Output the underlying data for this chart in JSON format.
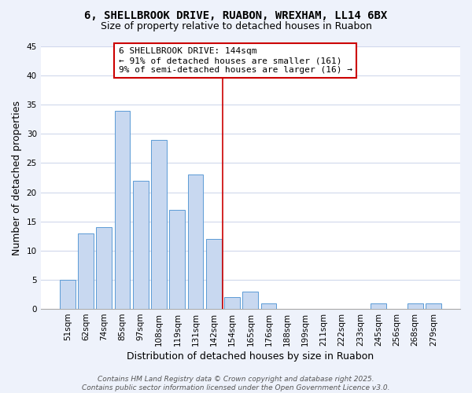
{
  "title_line1": "6, SHELLBROOK DRIVE, RUABON, WREXHAM, LL14 6BX",
  "title_line2": "Size of property relative to detached houses in Ruabon",
  "xlabel": "Distribution of detached houses by size in Ruabon",
  "ylabel": "Number of detached properties",
  "bar_labels": [
    "51sqm",
    "62sqm",
    "74sqm",
    "85sqm",
    "97sqm",
    "108sqm",
    "119sqm",
    "131sqm",
    "142sqm",
    "154sqm",
    "165sqm",
    "176sqm",
    "188sqm",
    "199sqm",
    "211sqm",
    "222sqm",
    "233sqm",
    "245sqm",
    "256sqm",
    "268sqm",
    "279sqm"
  ],
  "bar_values": [
    5,
    13,
    14,
    34,
    22,
    29,
    17,
    23,
    12,
    2,
    3,
    1,
    0,
    0,
    0,
    0,
    0,
    1,
    0,
    1,
    1
  ],
  "bar_color": "#c8d8f0",
  "bar_edge_color": "#5b9bd5",
  "vline_color": "#cc0000",
  "annotation_title": "6 SHELLBROOK DRIVE: 144sqm",
  "annotation_line1": "← 91% of detached houses are smaller (161)",
  "annotation_line2": "9% of semi-detached houses are larger (16) →",
  "annotation_box_color": "#ffffff",
  "annotation_box_edge": "#cc0000",
  "ylim": [
    0,
    45
  ],
  "footer1": "Contains HM Land Registry data © Crown copyright and database right 2025.",
  "footer2": "Contains public sector information licensed under the Open Government Licence v3.0.",
  "background_color": "#eef2fb",
  "plot_bg_color": "#ffffff",
  "grid_color": "#d0d8ec",
  "title_fontsize": 10,
  "subtitle_fontsize": 9,
  "axis_label_fontsize": 9,
  "tick_fontsize": 7.5,
  "annotation_fontsize": 8,
  "footer_fontsize": 6.5,
  "vline_index": 8.5
}
